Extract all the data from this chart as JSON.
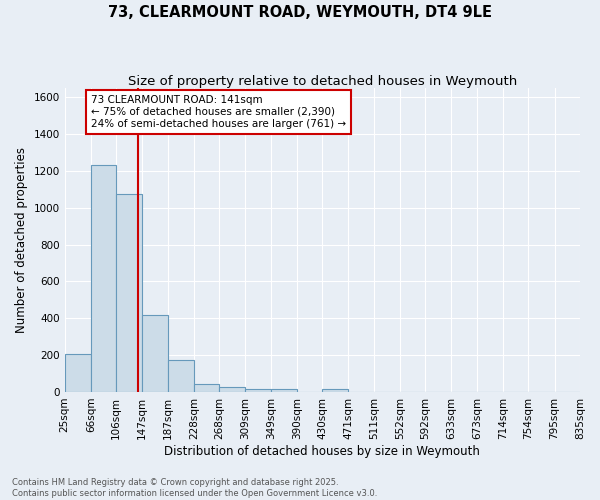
{
  "title_line1": "73, CLEARMOUNT ROAD, WEYMOUTH, DT4 9LE",
  "title_line2": "Size of property relative to detached houses in Weymouth",
  "xlabel": "Distribution of detached houses by size in Weymouth",
  "ylabel": "Number of detached properties",
  "footer_line1": "Contains HM Land Registry data © Crown copyright and database right 2025.",
  "footer_line2": "Contains public sector information licensed under the Open Government Licence v3.0.",
  "bin_edges": [
    25,
    66,
    106,
    147,
    187,
    228,
    268,
    309,
    349,
    390,
    430,
    471,
    511,
    552,
    592,
    633,
    673,
    714,
    754,
    795,
    835
  ],
  "bar_heights": [
    205,
    1230,
    1075,
    420,
    175,
    45,
    25,
    15,
    15,
    0,
    15,
    0,
    0,
    0,
    0,
    0,
    0,
    0,
    0,
    0
  ],
  "bar_color": "#ccdce8",
  "bar_edge_color": "#6699bb",
  "bar_edge_width": 0.8,
  "red_line_x": 141,
  "red_line_color": "#cc0000",
  "annotation_text": "73 CLEARMOUNT ROAD: 141sqm\n← 75% of detached houses are smaller (2,390)\n24% of semi-detached houses are larger (761) →",
  "annotation_box_facecolor": "#ffffff",
  "annotation_box_edgecolor": "#cc0000",
  "ylim": [
    0,
    1650
  ],
  "yticks": [
    0,
    200,
    400,
    600,
    800,
    1000,
    1200,
    1400,
    1600
  ],
  "background_color": "#e8eef5",
  "grid_color": "#ffffff",
  "title_fontsize": 10.5,
  "subtitle_fontsize": 9.5,
  "axis_label_fontsize": 8.5,
  "tick_fontsize": 7.5,
  "footer_fontsize": 6.0,
  "annotation_fontsize": 7.5
}
